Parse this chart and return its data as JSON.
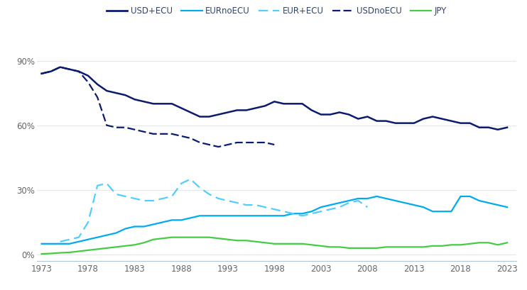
{
  "legend_entries": [
    "USD+ECU",
    "EURnoECU",
    "EUR+ECU",
    "USDnoECU",
    "JPY"
  ],
  "colors": {
    "USD+ECU": "#0d1b6e",
    "EURnoECU": "#00aaee",
    "EUR+ECU": "#55ccff",
    "USDnoECU": "#0d1b6e",
    "JPY": "#44cc44"
  },
  "linestyles": {
    "USD+ECU": "solid",
    "EURnoECU": "solid",
    "EUR+ECU": "dashed",
    "USDnoECU": "dashed",
    "JPY": "solid"
  },
  "linewidths": {
    "USD+ECU": 1.8,
    "EURnoECU": 1.6,
    "EUR+ECU": 1.6,
    "USDnoECU": 1.6,
    "JPY": 1.6
  },
  "ylim": [
    -3,
    102
  ],
  "yticks": [
    0,
    30,
    60,
    90
  ],
  "ytick_labels": [
    "0%",
    "30%",
    "60%",
    "90%"
  ],
  "xlim": [
    1972.5,
    2024
  ],
  "xticks": [
    1973,
    1978,
    1983,
    1988,
    1993,
    1998,
    2003,
    2008,
    2013,
    2018,
    2023
  ],
  "background_color": "#ffffff",
  "series": {
    "USD+ECU": {
      "years": [
        1973,
        1974,
        1975,
        1976,
        1977,
        1978,
        1979,
        1980,
        1981,
        1982,
        1983,
        1984,
        1985,
        1986,
        1987,
        1988,
        1989,
        1990,
        1991,
        1992,
        1993,
        1994,
        1995,
        1996,
        1997,
        1998,
        1999,
        2000,
        2001,
        2002,
        2003,
        2004,
        2005,
        2006,
        2007,
        2008,
        2009,
        2010,
        2011,
        2012,
        2013,
        2014,
        2015,
        2016,
        2017,
        2018,
        2019,
        2020,
        2021,
        2022,
        2023
      ],
      "values": [
        84,
        85,
        87,
        86,
        85,
        83,
        79,
        76,
        75,
        74,
        72,
        71,
        70,
        70,
        70,
        68,
        66,
        64,
        64,
        65,
        66,
        67,
        67,
        68,
        69,
        71,
        70,
        70,
        70,
        67,
        65,
        65,
        66,
        65,
        63,
        64,
        62,
        62,
        61,
        61,
        61,
        63,
        64,
        63,
        62,
        61,
        61,
        59,
        59,
        58,
        59
      ]
    },
    "USDnoECU": {
      "years": [
        1973,
        1974,
        1975,
        1976,
        1977,
        1978,
        1979,
        1980,
        1981,
        1982,
        1983,
        1984,
        1985,
        1986,
        1987,
        1988,
        1989,
        1990,
        1991,
        1992,
        1993,
        1994,
        1995,
        1996,
        1997,
        1998
      ],
      "values": [
        84,
        85,
        87,
        86,
        85,
        80,
        73,
        60,
        59,
        59,
        58,
        57,
        56,
        56,
        56,
        55,
        54,
        52,
        51,
        50,
        51,
        52,
        52,
        52,
        52,
        51
      ]
    },
    "EURnoECU": {
      "years": [
        1973,
        1974,
        1975,
        1976,
        1977,
        1978,
        1979,
        1980,
        1981,
        1982,
        1983,
        1984,
        1985,
        1986,
        1987,
        1988,
        1989,
        1990,
        1991,
        1992,
        1993,
        1994,
        1995,
        1996,
        1997,
        1998,
        1999,
        2000,
        2001,
        2002,
        2003,
        2004,
        2005,
        2006,
        2007,
        2008,
        2009,
        2010,
        2011,
        2012,
        2013,
        2014,
        2015,
        2016,
        2017,
        2018,
        2019,
        2020,
        2021,
        2022,
        2023
      ],
      "values": [
        5,
        5,
        5,
        5,
        6,
        7,
        8,
        9,
        10,
        12,
        13,
        13,
        14,
        15,
        16,
        16,
        17,
        18,
        18,
        18,
        18,
        18,
        18,
        18,
        18,
        18,
        18,
        19,
        19,
        20,
        22,
        23,
        24,
        25,
        26,
        26,
        27,
        26,
        25,
        24,
        23,
        22,
        20,
        20,
        20,
        27,
        27,
        25,
        24,
        23,
        22
      ]
    },
    "EUR+ECU": {
      "years": [
        1975,
        1976,
        1977,
        1978,
        1979,
        1980,
        1981,
        1982,
        1983,
        1984,
        1985,
        1986,
        1987,
        1988,
        1989,
        1990,
        1991,
        1992,
        1993,
        1994,
        1995,
        1996,
        1997,
        1998,
        1999,
        2000,
        2001,
        2002,
        2003,
        2004,
        2005,
        2006,
        2007,
        2008
      ],
      "values": [
        6,
        7,
        8,
        15,
        32,
        33,
        28,
        27,
        26,
        25,
        25,
        26,
        27,
        33,
        35,
        31,
        28,
        26,
        25,
        24,
        23,
        23,
        22,
        21,
        20,
        19,
        18,
        19,
        20,
        21,
        22,
        24,
        25,
        22
      ]
    },
    "JPY": {
      "years": [
        1973,
        1974,
        1975,
        1976,
        1977,
        1978,
        1979,
        1980,
        1981,
        1982,
        1983,
        1984,
        1985,
        1986,
        1987,
        1988,
        1989,
        1990,
        1991,
        1992,
        1993,
        1994,
        1995,
        1996,
        1997,
        1998,
        1999,
        2000,
        2001,
        2002,
        2003,
        2004,
        2005,
        2006,
        2007,
        2008,
        2009,
        2010,
        2011,
        2012,
        2013,
        2014,
        2015,
        2016,
        2017,
        2018,
        2019,
        2020,
        2021,
        2022,
        2023
      ],
      "values": [
        0.3,
        0.5,
        0.8,
        1.0,
        1.5,
        2.0,
        2.5,
        3.0,
        3.5,
        4.0,
        4.5,
        5.5,
        7.0,
        7.5,
        8.0,
        8.0,
        8.0,
        8.0,
        8.0,
        7.5,
        7.0,
        6.5,
        6.5,
        6.0,
        5.5,
        5.0,
        5.0,
        5.0,
        5.0,
        4.5,
        4.0,
        3.5,
        3.5,
        3.0,
        3.0,
        3.0,
        3.0,
        3.5,
        3.5,
        3.5,
        3.5,
        3.5,
        4.0,
        4.0,
        4.5,
        4.5,
        5.0,
        5.5,
        5.5,
        4.5,
        5.5
      ]
    }
  }
}
